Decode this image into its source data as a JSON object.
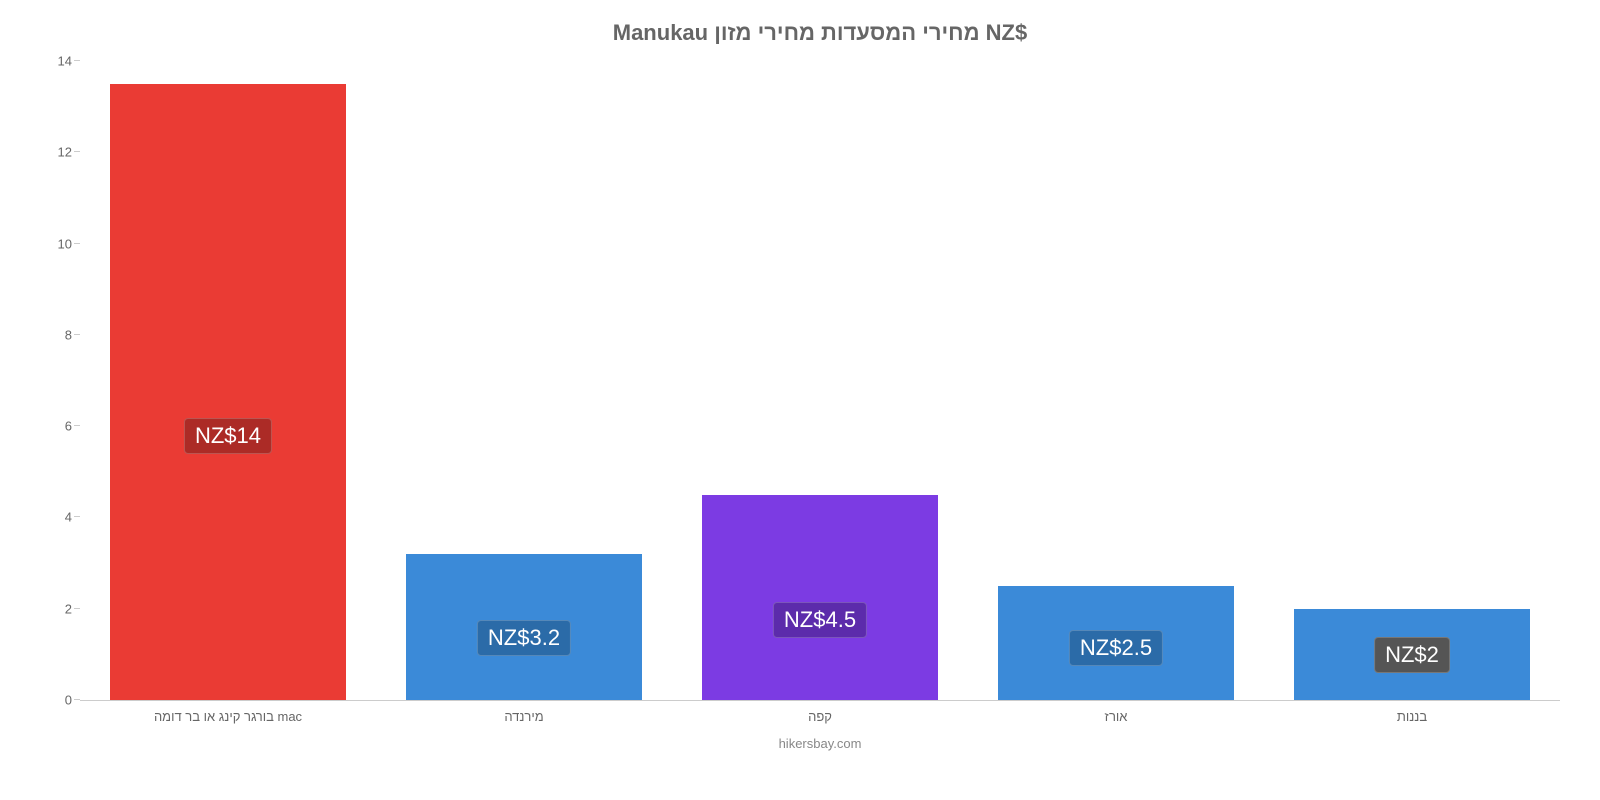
{
  "chart": {
    "type": "bar",
    "title": "Manukau מחירי המסעדות מחירי מזון NZ$",
    "title_fontsize": 22,
    "title_color": "#666666",
    "background_color": "#ffffff",
    "ylim": [
      0,
      14
    ],
    "ytick_step": 2,
    "yticks": [
      0,
      2,
      4,
      6,
      8,
      10,
      12,
      14
    ],
    "axis_color": "#cccccc",
    "tick_label_color": "#666666",
    "tick_fontsize": 13,
    "categories": [
      "בורגר קינג או בר דומה mac",
      "מירנדה",
      "קפה",
      "אורז",
      "בננות"
    ],
    "values": [
      13.5,
      3.2,
      4.5,
      2.5,
      2
    ],
    "value_labels": [
      "NZ$14",
      "NZ$3.2",
      "NZ$4.5",
      "NZ$2.5",
      "NZ$2"
    ],
    "bar_colors": [
      "#ea3b34",
      "#3b8ad8",
      "#7c3be3",
      "#3b8ad8",
      "#3b8ad8"
    ],
    "label_bg_colors": [
      "#ac2b26",
      "#2b6ba8",
      "#5c2bab",
      "#2b6ba8",
      "#555555"
    ],
    "label_text_color": "#ffffff",
    "label_fontsize": 22,
    "bar_width_pct": 80,
    "source": "hikersbay.com",
    "source_color": "#888888",
    "source_fontsize": 13
  }
}
